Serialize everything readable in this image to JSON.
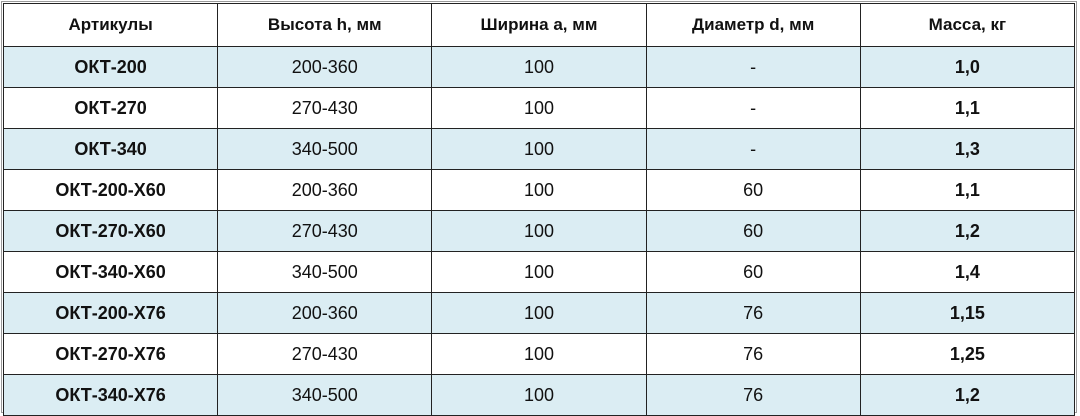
{
  "table": {
    "headers": [
      "Артикулы",
      "Высота h, мм",
      "Ширина a, мм",
      "Диаметр d, мм",
      "Масса, кг"
    ],
    "rows": [
      [
        "ОКТ-200",
        "200-360",
        "100",
        "-",
        "1,0"
      ],
      [
        "ОКТ-270",
        "270-430",
        "100",
        "-",
        "1,1"
      ],
      [
        "ОКТ-340",
        "340-500",
        "100",
        "-",
        "1,3"
      ],
      [
        "ОКТ-200-Х60",
        "200-360",
        "100",
        "60",
        "1,1"
      ],
      [
        "ОКТ-270-Х60",
        "270-430",
        "100",
        "60",
        "1,2"
      ],
      [
        "ОКТ-340-Х60",
        "340-500",
        "100",
        "60",
        "1,4"
      ],
      [
        "ОКТ-200-Х76",
        "200-360",
        "100",
        "76",
        "1,15"
      ],
      [
        "ОКТ-270-Х76",
        "270-430",
        "100",
        "76",
        "1,25"
      ],
      [
        "ОКТ-340-Х76",
        "340-500",
        "100",
        "76",
        "1,2"
      ]
    ],
    "stripe_color": "#dbedf3"
  }
}
